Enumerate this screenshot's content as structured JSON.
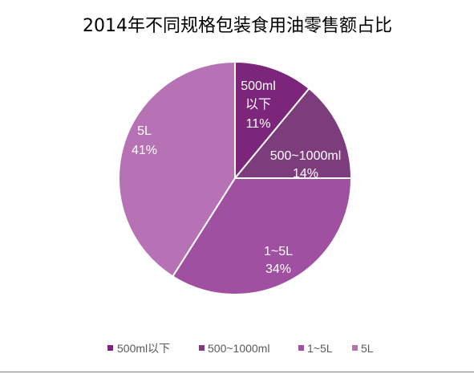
{
  "chart_data": {
    "type": "pie",
    "title": "2014年不同规格包装食用油零售额占比",
    "categories": [
      "500ml以下",
      "500~1000ml",
      "1~5L",
      "5L"
    ],
    "values": [
      11,
      14,
      34,
      41
    ],
    "value_labels": [
      "11%",
      "14%",
      "34%",
      "41%"
    ],
    "slice_label_lines": [
      [
        "500ml",
        "以下"
      ],
      [
        "500~1000ml"
      ],
      [
        "1~5L"
      ],
      [
        "5L"
      ]
    ],
    "colors": [
      "#7c267b",
      "#7d3c7c",
      "#a050a0",
      "#b771b5"
    ],
    "legend_position": "bottom"
  }
}
